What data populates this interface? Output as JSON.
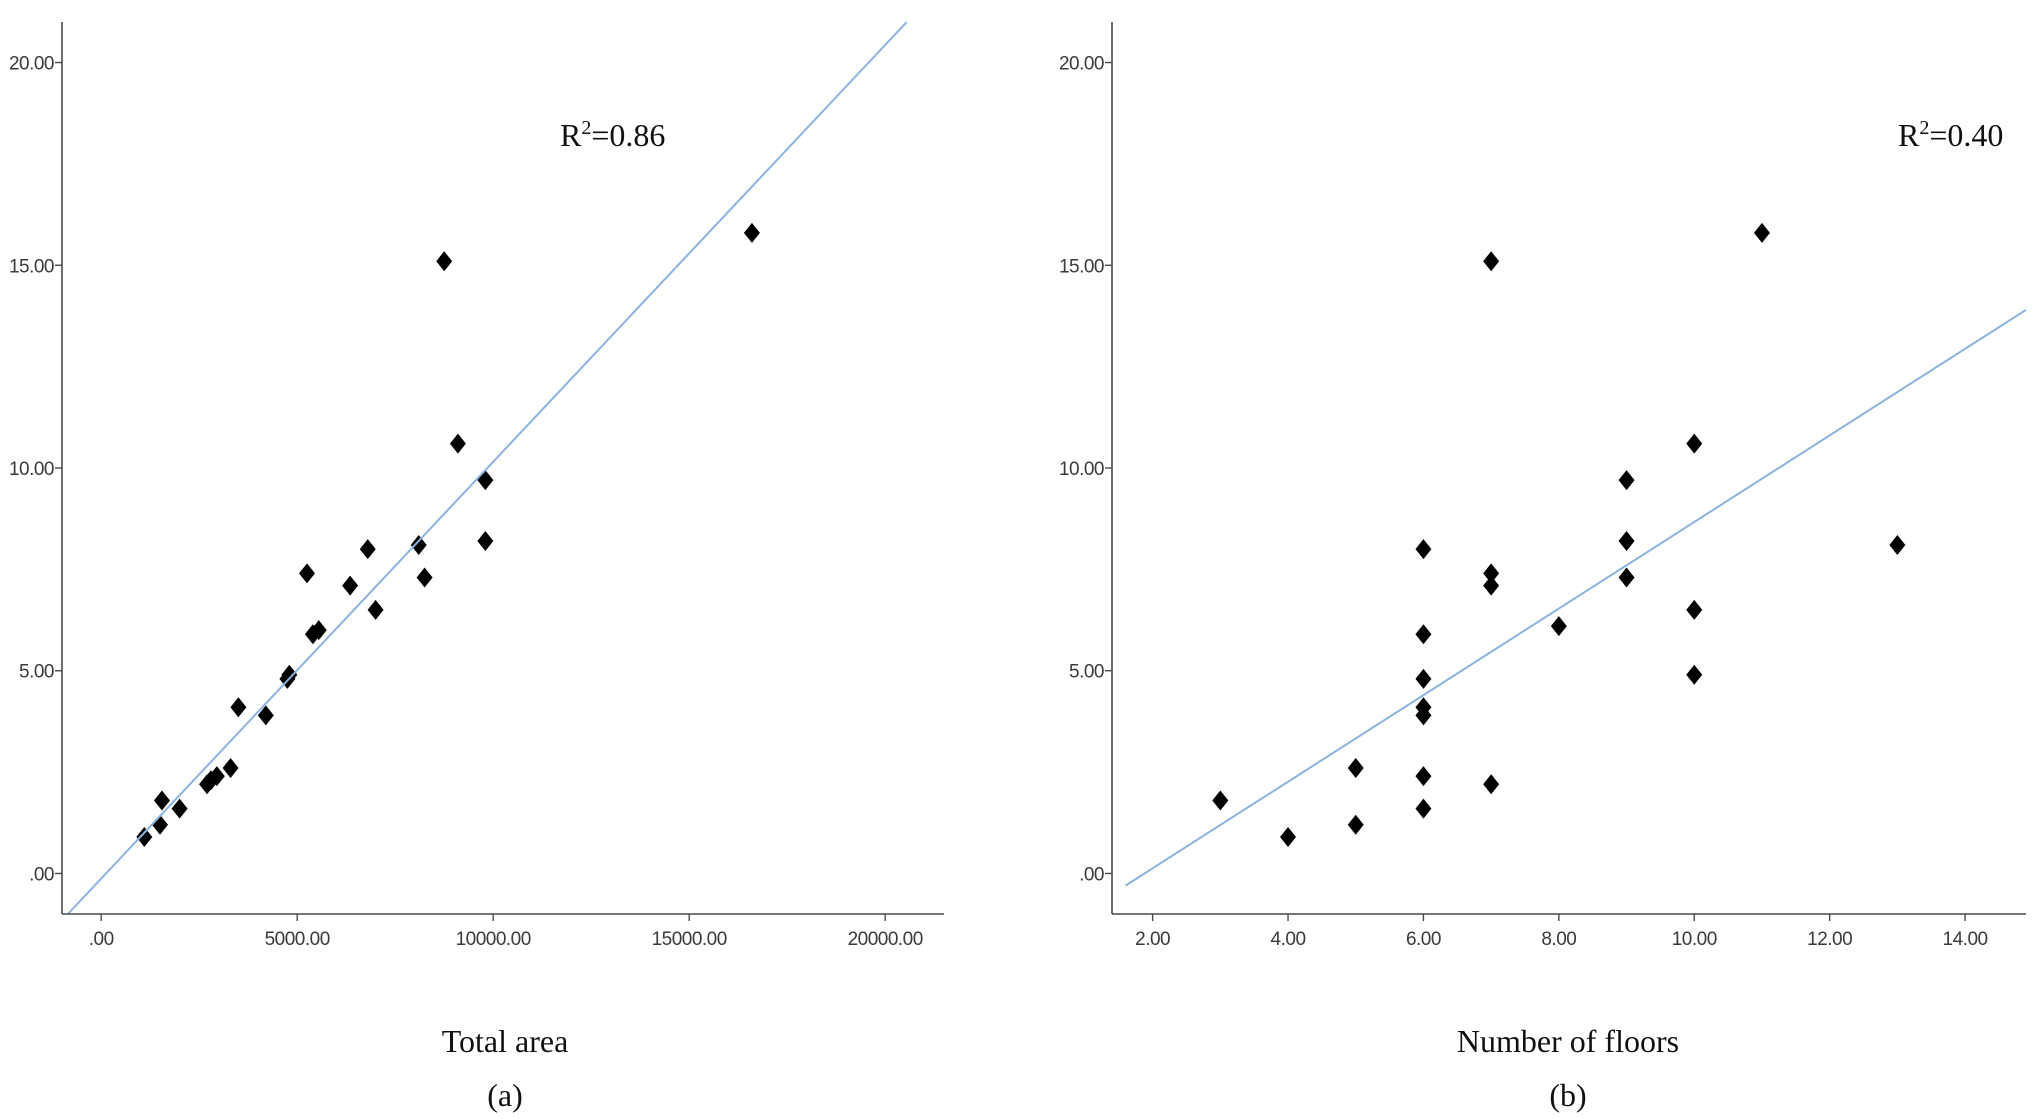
{
  "colors": {
    "fit_line": "#8ab4e0",
    "marker": "#000000",
    "axis": "#4a4a4a"
  },
  "chart_data": [
    {
      "type": "scatter",
      "panel": "a",
      "caption": "(a)",
      "xlabel": "Total area",
      "ylabel": "",
      "xlim": [
        -1000,
        21500
      ],
      "ylim": [
        -1.0,
        21.0
      ],
      "xticks": [
        0,
        5000,
        10000,
        15000,
        20000
      ],
      "xtick_labels": [
        ".00",
        "5000.00",
        "10000.00",
        "15000.00",
        "20000.00"
      ],
      "yticks": [
        0,
        5,
        10,
        15,
        20
      ],
      "ytick_labels": [
        ".00",
        "5.00",
        "10.00",
        "15.00",
        "20.00"
      ],
      "annotation": {
        "base": "R",
        "sup": "2",
        "rest": "=0.86"
      },
      "fit_line": {
        "x": [
          -850,
          20550
        ],
        "y": [
          -1.0,
          21.0
        ]
      },
      "points": {
        "x": [
          1100,
          1500,
          1550,
          2000,
          2700,
          2800,
          2950,
          3300,
          3500,
          4200,
          4750,
          4800,
          5250,
          5400,
          5550,
          6350,
          6800,
          7000,
          8100,
          8250,
          8750,
          9100,
          9800,
          9800,
          16600
        ],
        "y": [
          0.9,
          1.2,
          1.8,
          1.6,
          2.2,
          2.3,
          2.4,
          2.6,
          4.1,
          3.9,
          4.8,
          4.9,
          7.4,
          5.9,
          6.0,
          7.1,
          8.0,
          6.5,
          8.1,
          7.3,
          15.1,
          10.6,
          9.7,
          8.2,
          15.8
        ]
      }
    },
    {
      "type": "scatter",
      "panel": "b",
      "caption": "(b)",
      "xlabel": "Number of floors",
      "ylabel": "",
      "xlim": [
        1.4,
        14.9
      ],
      "ylim": [
        -1.0,
        21.0
      ],
      "xticks": [
        2,
        4,
        6,
        8,
        10,
        12,
        14
      ],
      "xtick_labels": [
        "2.00",
        "4.00",
        "6.00",
        "8.00",
        "10.00",
        "12.00",
        "14.00"
      ],
      "yticks": [
        0,
        5,
        10,
        15,
        20
      ],
      "ytick_labels": [
        ".00",
        "5.00",
        "10.00",
        "15.00",
        "20.00"
      ],
      "annotation": {
        "base": "R",
        "sup": "2",
        "rest": "=0.40"
      },
      "fit_line": {
        "x": [
          1.6,
          14.9
        ],
        "y": [
          -0.3,
          13.9
        ]
      },
      "points": {
        "x": [
          3,
          4,
          5,
          5,
          6,
          6,
          6,
          6,
          6,
          6,
          6,
          7,
          7,
          7,
          7,
          8,
          9,
          9,
          9,
          10,
          10,
          10,
          11,
          13
        ],
        "y": [
          1.8,
          0.9,
          1.2,
          2.6,
          8.0,
          5.9,
          4.8,
          4.1,
          3.9,
          2.4,
          1.6,
          15.1,
          7.4,
          7.1,
          2.2,
          6.1,
          9.7,
          8.2,
          7.3,
          10.6,
          6.5,
          4.9,
          15.8,
          8.1
        ]
      }
    }
  ]
}
